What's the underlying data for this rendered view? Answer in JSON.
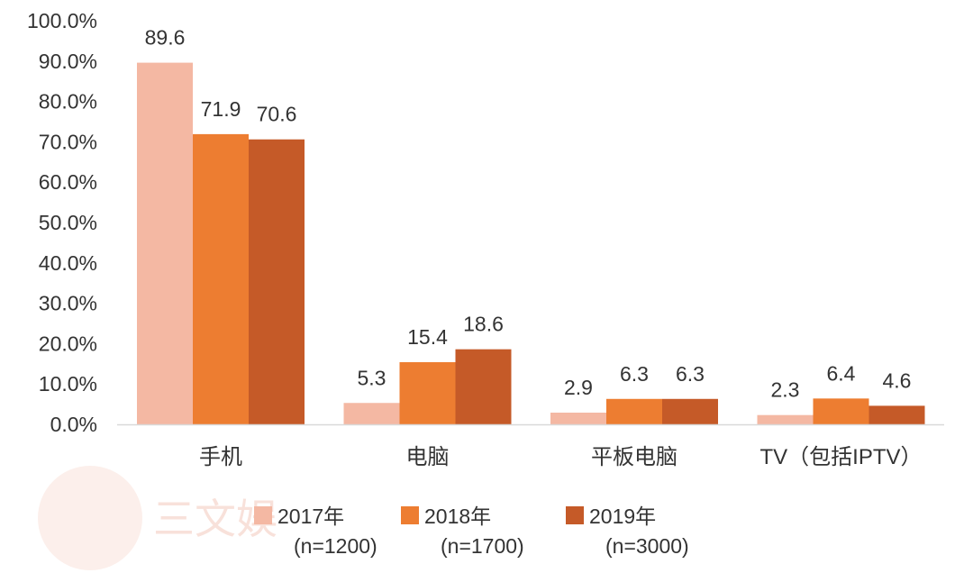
{
  "chart_data": {
    "type": "bar",
    "title": "",
    "xlabel": "",
    "ylabel": "",
    "ylim": [
      0,
      100
    ],
    "yticks": [
      "0.0%",
      "10.0%",
      "20.0%",
      "30.0%",
      "40.0%",
      "50.0%",
      "60.0%",
      "70.0%",
      "80.0%",
      "90.0%",
      "100.0%"
    ],
    "categories": [
      "手机",
      "电脑",
      "平板电脑",
      "TV（包括IPTV）"
    ],
    "series": [
      {
        "name": "2017年",
        "sample": "(n=1200)",
        "color": "#f4b8a3",
        "values": [
          89.6,
          5.3,
          2.9,
          2.3
        ]
      },
      {
        "name": "2018年",
        "sample": "(n=1700)",
        "color": "#ed7d31",
        "values": [
          71.9,
          15.4,
          6.3,
          6.4
        ]
      },
      {
        "name": "2019年",
        "sample": "(n=3000)",
        "color": "#c55a28",
        "values": [
          70.6,
          18.6,
          6.3,
          4.6
        ]
      }
    ],
    "data_labels": [
      [
        "89.6",
        "5.3",
        "2.9",
        "2.3"
      ],
      [
        "71.9",
        "15.4",
        "6.3",
        "6.4"
      ],
      [
        "70.6",
        "18.6",
        "6.3",
        "4.6"
      ]
    ],
    "legend": "bottom",
    "grid": false
  },
  "watermark": {
    "text": "三文娱",
    "color": "#f3c9bd"
  }
}
